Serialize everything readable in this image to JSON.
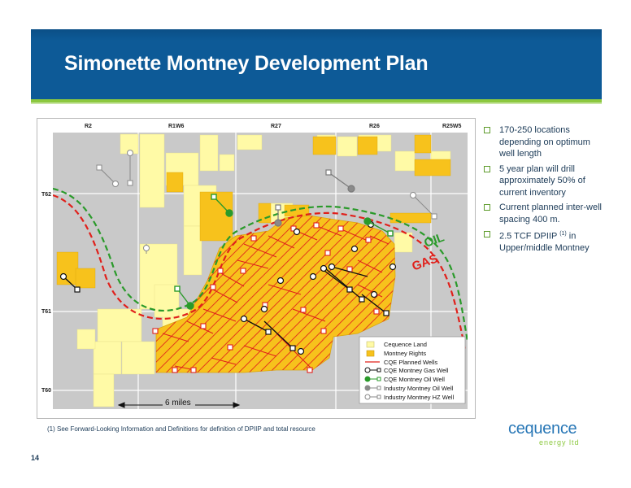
{
  "title": "Simonette Montney Development Plan",
  "map": {
    "ranges": [
      "R2",
      "R1W6",
      "R27",
      "R26",
      "R25W5"
    ],
    "townships": [
      "T62",
      "T61",
      "T60"
    ],
    "trend_labels": {
      "oil": "OIL",
      "gas": "GAS"
    },
    "scale_label": "6 miles",
    "legend": [
      {
        "label": "Cequence Land",
        "icon": "light-yellow-square"
      },
      {
        "label": "Montney Rights",
        "icon": "gold-square"
      },
      {
        "label": "CQE Planned Wells",
        "icon": "red-line"
      },
      {
        "label": "CQE Montney Gas Well",
        "icon": "gas-well-icon"
      },
      {
        "label": "CQE Montney Oil Well",
        "icon": "oil-well-icon"
      },
      {
        "label": "Industry Montney Oil Well",
        "icon": "industry-oil-well-icon"
      },
      {
        "label": "Industry Montney HZ Well",
        "icon": "industry-hz-well-icon"
      }
    ],
    "colors": {
      "cequence_land": "#fffaa6",
      "montney_rights": "#f7c21c",
      "planned_wells": "#e0201b",
      "oil_trend": "#2a9a2a",
      "gas_trend": "#e0201b",
      "background": "#c9c9c9"
    }
  },
  "bullets": [
    {
      "text": "170-250 locations depending on optimum well length"
    },
    {
      "text": "5 year plan will drill approximately 50% of current inventory"
    },
    {
      "text": "Current planned inter-well spacing 400 m."
    },
    {
      "pre": "2.5 TCF DPIIP ",
      "sup": "(1)",
      "post": " in Upper/middle Montney"
    }
  ],
  "footnote": "(1)  See Forward-Looking Information and Definitions for definition of DPIIP and total resource",
  "page_number": "14",
  "logo": {
    "line1": "cequence",
    "line2": "energy ltd"
  }
}
